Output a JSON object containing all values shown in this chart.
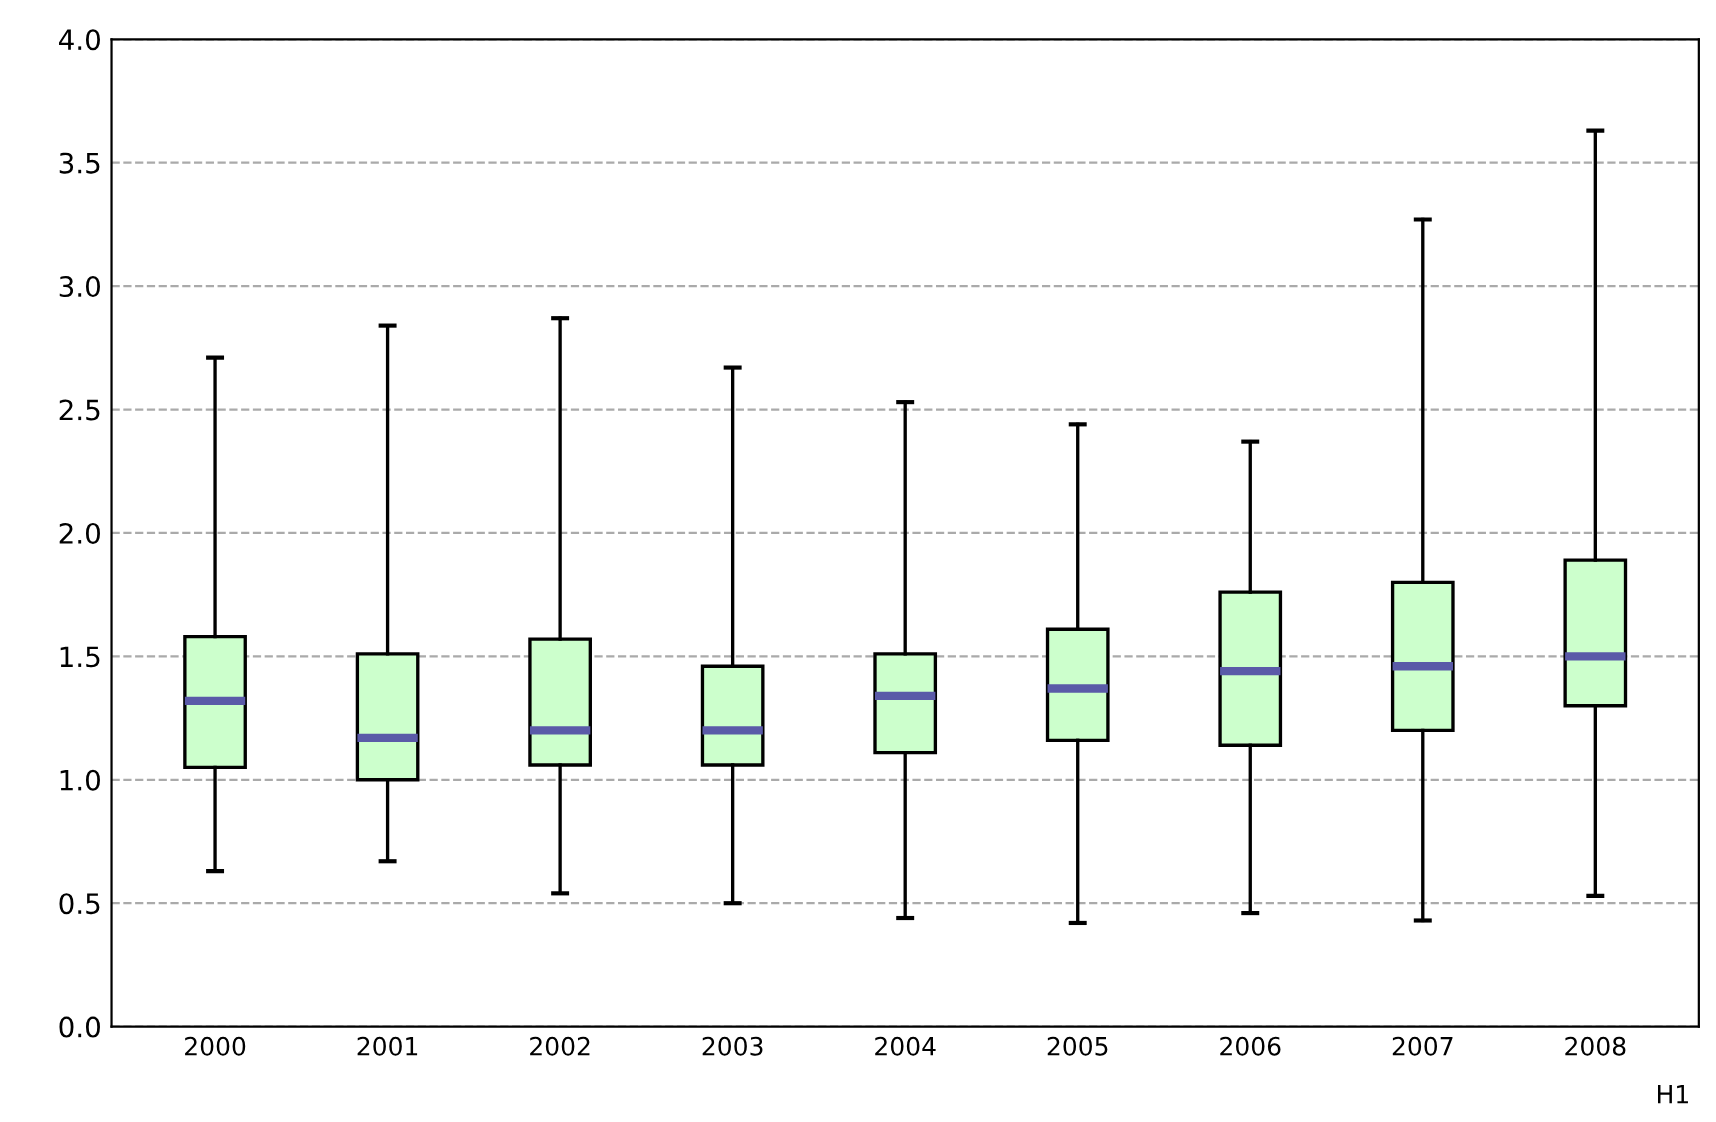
{
  "chart_data": {
    "type": "box",
    "categories": [
      "2000",
      "2001",
      "2002",
      "2003",
      "2004",
      "2005",
      "2006",
      "2007",
      "2008"
    ],
    "boxes": [
      {
        "low": 0.63,
        "q1": 1.05,
        "median": 1.32,
        "q3": 1.58,
        "high": 2.71
      },
      {
        "low": 0.67,
        "q1": 1.0,
        "median": 1.17,
        "q3": 1.51,
        "high": 2.84
      },
      {
        "low": 0.54,
        "q1": 1.06,
        "median": 1.2,
        "q3": 1.57,
        "high": 2.87
      },
      {
        "low": 0.5,
        "q1": 1.06,
        "median": 1.2,
        "q3": 1.46,
        "high": 2.67
      },
      {
        "low": 0.44,
        "q1": 1.11,
        "median": 1.34,
        "q3": 1.51,
        "high": 2.53
      },
      {
        "low": 0.42,
        "q1": 1.16,
        "median": 1.37,
        "q3": 1.61,
        "high": 2.44
      },
      {
        "low": 0.46,
        "q1": 1.14,
        "median": 1.44,
        "q3": 1.76,
        "high": 2.37
      },
      {
        "low": 0.43,
        "q1": 1.2,
        "median": 1.46,
        "q3": 1.8,
        "high": 3.27
      },
      {
        "low": 0.53,
        "q1": 1.3,
        "median": 1.5,
        "q3": 1.89,
        "high": 3.63
      }
    ],
    "color": "#ccffcc",
    "ylim": [
      0,
      4
    ],
    "yticks": [
      {
        "value": 0,
        "label": "0.0"
      },
      0.5,
      {
        "value": 1,
        "label": "1.0"
      },
      1.5,
      {
        "value": 2,
        "label": "2.0"
      },
      2.5,
      {
        "value": 3,
        "label": "3.0"
      },
      3.5,
      {
        "value": 4,
        "label": "4.0"
      }
    ],
    "grid": "y",
    "annotations": [
      "H1"
    ]
  }
}
